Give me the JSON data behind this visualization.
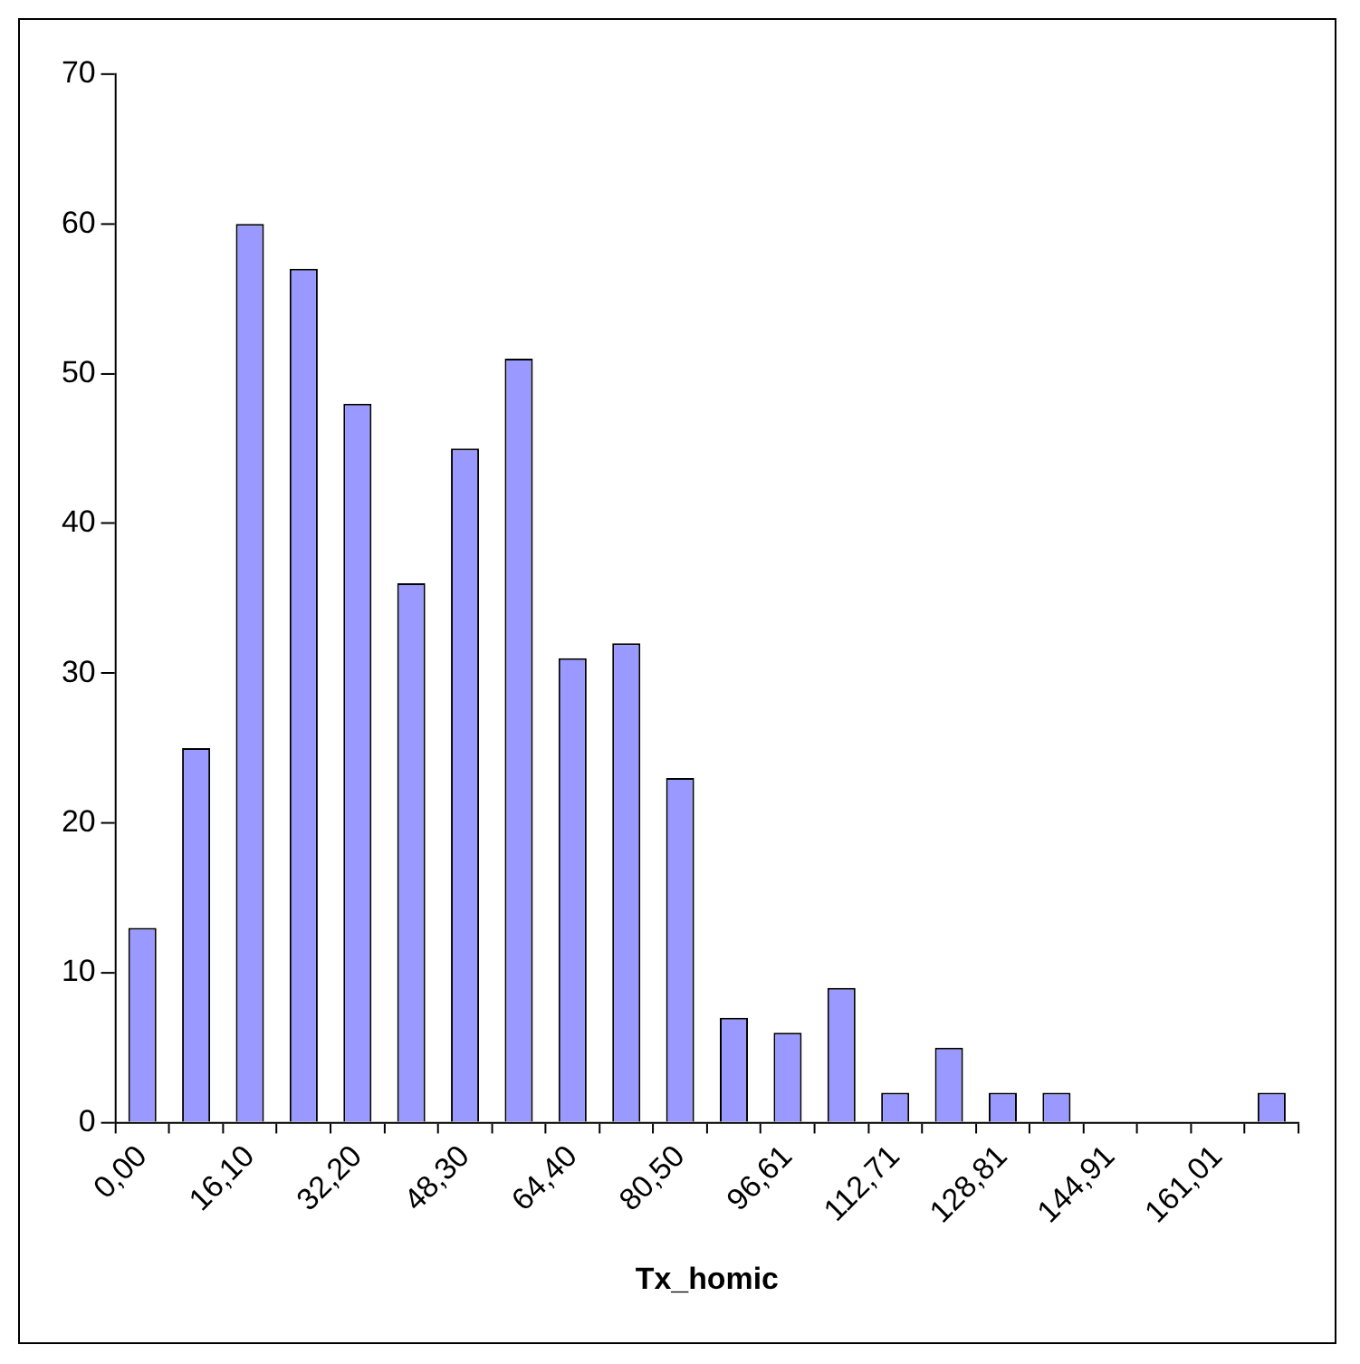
{
  "chart_data": {
    "type": "bar",
    "xlabel": "Tx_homic",
    "categories": [
      "0,00",
      null,
      "16,10",
      null,
      "32,20",
      null,
      "48,30",
      null,
      "64,40",
      null,
      "80,50",
      null,
      "96,61",
      null,
      "112,71",
      null,
      "128,81",
      null,
      "144,91",
      null,
      "161,01",
      null
    ],
    "values": [
      13,
      25,
      60,
      57,
      48,
      36,
      45,
      51,
      31,
      32,
      23,
      7,
      6,
      9,
      2,
      5,
      2,
      2,
      0,
      0,
      0,
      2
    ],
    "color": "#9999ff",
    "ylim": [
      0,
      70
    ],
    "yticks": [
      0,
      10,
      20,
      30,
      40,
      50,
      60,
      70
    ],
    "grid": false,
    "legend": false
  }
}
